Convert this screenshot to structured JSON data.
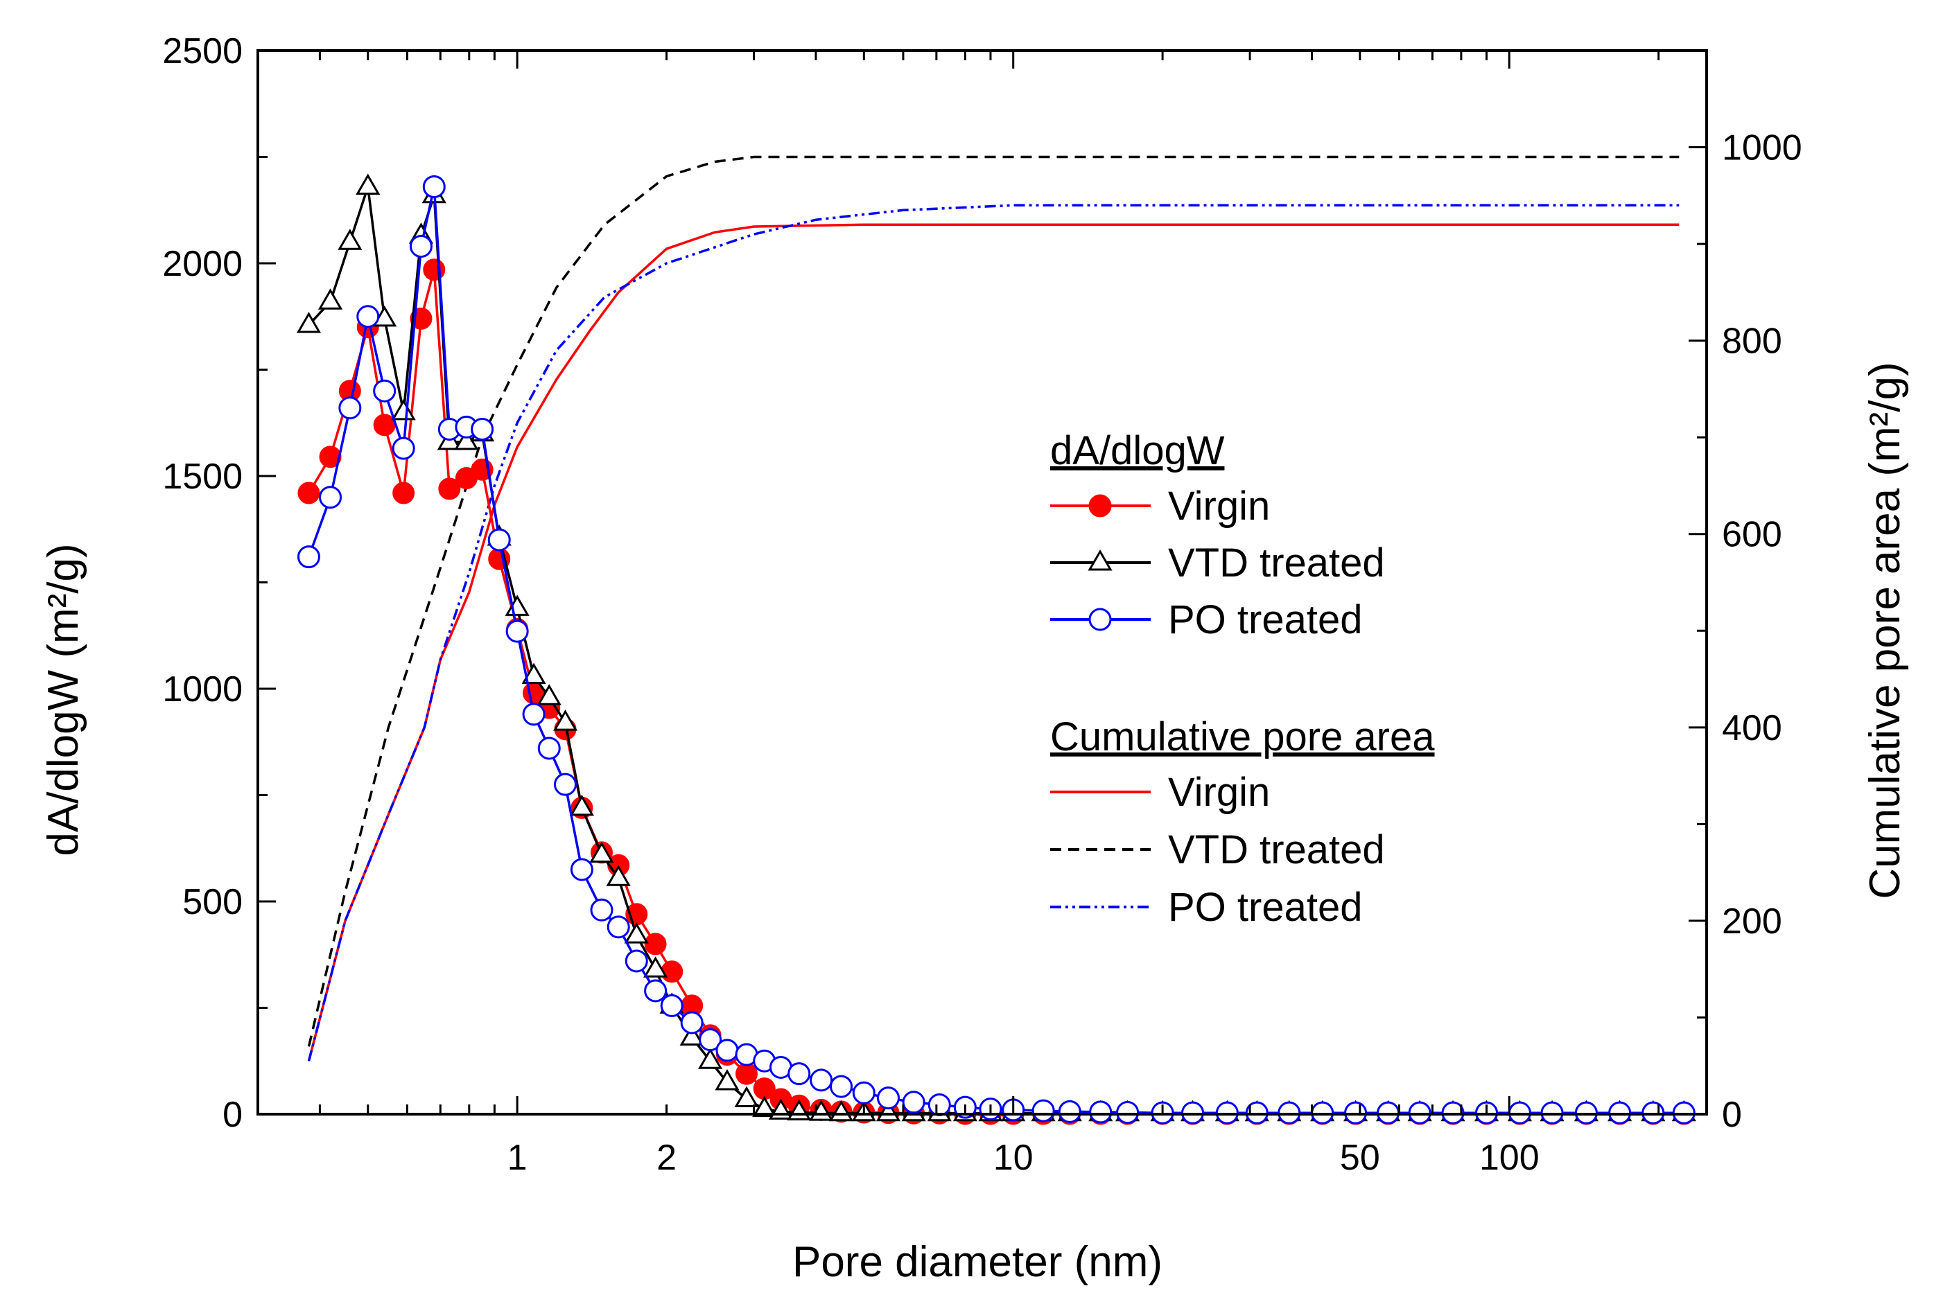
{
  "chart_data": {
    "type": "line",
    "x_scale": "log",
    "xlabel": "Pore diameter (nm)",
    "ylabel_left": "dA/dlogW (m²/g)",
    "ylabel_right": "Cumulative pore area (m²/g)",
    "xlim": [
      0.3,
      250
    ],
    "ylim_left": [
      0,
      2500
    ],
    "ylim_right": [
      0,
      1100
    ],
    "x_tick_labels": [
      {
        "value": 1,
        "label": "1"
      },
      {
        "value": 2,
        "label": "2"
      },
      {
        "value": 10,
        "label": "10"
      },
      {
        "value": 50,
        "label": "50"
      },
      {
        "value": 100,
        "label": "100"
      }
    ],
    "y_left_ticks": [
      0,
      500,
      1000,
      1500,
      2000,
      2500
    ],
    "y_right_ticks": [
      0,
      200,
      400,
      600,
      800,
      1000
    ],
    "legend": {
      "group1_title": "dA/dlogW",
      "group2_title": "Cumulative pore area",
      "entries": [
        "Virgin",
        "VTD treated",
        "PO treated"
      ]
    },
    "colors": {
      "virgin": "#ff0000",
      "vtd": "#000000",
      "po": "#0000ff"
    },
    "distribution_series": [
      {
        "name": "Virgin",
        "marker": "filled-circle",
        "points": [
          [
            0.38,
            1460
          ],
          [
            0.42,
            1545
          ],
          [
            0.46,
            1700
          ],
          [
            0.5,
            1850
          ],
          [
            0.54,
            1620
          ],
          [
            0.59,
            1460
          ],
          [
            0.64,
            1870
          ],
          [
            0.68,
            1985
          ],
          [
            0.73,
            1470
          ],
          [
            0.79,
            1495
          ],
          [
            0.85,
            1515
          ],
          [
            0.92,
            1305
          ],
          [
            1.0,
            1140
          ],
          [
            1.08,
            990
          ],
          [
            1.16,
            955
          ],
          [
            1.25,
            905
          ],
          [
            1.35,
            720
          ],
          [
            1.48,
            615
          ],
          [
            1.6,
            585
          ],
          [
            1.74,
            470
          ],
          [
            1.9,
            400
          ],
          [
            2.05,
            335
          ],
          [
            2.25,
            255
          ],
          [
            2.45,
            185
          ],
          [
            2.65,
            140
          ],
          [
            2.9,
            95
          ],
          [
            3.15,
            60
          ],
          [
            3.4,
            35
          ],
          [
            3.7,
            20
          ],
          [
            4.1,
            10
          ],
          [
            4.5,
            6
          ],
          [
            5.0,
            4
          ],
          [
            5.6,
            3
          ],
          [
            6.3,
            2
          ],
          [
            7.1,
            2
          ],
          [
            8.0,
            1
          ],
          [
            9.0,
            1
          ],
          [
            10.0,
            1
          ],
          [
            11.5,
            1
          ],
          [
            13.0,
            1
          ],
          [
            15.0,
            1
          ],
          [
            17.0,
            1
          ],
          [
            20.0,
            1
          ],
          [
            23.0,
            1
          ],
          [
            27.0,
            1
          ],
          [
            31.0,
            1
          ],
          [
            36.0,
            1
          ],
          [
            42.0,
            1
          ],
          [
            49.0,
            1
          ],
          [
            57.0,
            1
          ],
          [
            66.0,
            1
          ],
          [
            77.0,
            1
          ],
          [
            90.0,
            1
          ],
          [
            105.0,
            1
          ],
          [
            122.0,
            1
          ],
          [
            143.0,
            1
          ],
          [
            167.0,
            1
          ],
          [
            195.0,
            1
          ],
          [
            225.0,
            1
          ]
        ]
      },
      {
        "name": "VTD treated",
        "marker": "open-triangle",
        "points": [
          [
            0.38,
            1855
          ],
          [
            0.42,
            1910
          ],
          [
            0.46,
            2050
          ],
          [
            0.5,
            2180
          ],
          [
            0.54,
            1870
          ],
          [
            0.59,
            1650
          ],
          [
            0.64,
            2065
          ],
          [
            0.68,
            2160
          ],
          [
            0.73,
            1580
          ],
          [
            0.79,
            1580
          ],
          [
            0.85,
            1600
          ],
          [
            0.92,
            1355
          ],
          [
            1.0,
            1190
          ],
          [
            1.08,
            1030
          ],
          [
            1.16,
            980
          ],
          [
            1.25,
            920
          ],
          [
            1.35,
            720
          ],
          [
            1.48,
            610
          ],
          [
            1.6,
            555
          ],
          [
            1.74,
            420
          ],
          [
            1.9,
            340
          ],
          [
            2.05,
            255
          ],
          [
            2.25,
            180
          ],
          [
            2.45,
            125
          ],
          [
            2.65,
            75
          ],
          [
            2.9,
            35
          ],
          [
            3.15,
            12
          ],
          [
            3.4,
            6
          ],
          [
            3.7,
            4
          ],
          [
            4.1,
            3
          ],
          [
            4.5,
            2
          ],
          [
            5.0,
            2
          ],
          [
            5.6,
            2
          ],
          [
            6.3,
            2
          ],
          [
            7.1,
            2
          ],
          [
            8.0,
            2
          ],
          [
            9.0,
            2
          ],
          [
            10.0,
            2
          ],
          [
            11.5,
            2
          ],
          [
            13.0,
            2
          ],
          [
            15.0,
            2
          ],
          [
            17.0,
            2
          ],
          [
            20.0,
            2
          ],
          [
            23.0,
            2
          ],
          [
            27.0,
            2
          ],
          [
            31.0,
            2
          ],
          [
            36.0,
            2
          ],
          [
            42.0,
            2
          ],
          [
            49.0,
            2
          ],
          [
            57.0,
            2
          ],
          [
            66.0,
            2
          ],
          [
            77.0,
            2
          ],
          [
            90.0,
            2
          ],
          [
            105.0,
            2
          ],
          [
            122.0,
            2
          ],
          [
            143.0,
            2
          ],
          [
            167.0,
            2
          ],
          [
            195.0,
            2
          ],
          [
            225.0,
            2
          ]
        ]
      },
      {
        "name": "PO treated",
        "marker": "open-circle",
        "points": [
          [
            0.38,
            1310
          ],
          [
            0.42,
            1450
          ],
          [
            0.46,
            1660
          ],
          [
            0.5,
            1875
          ],
          [
            0.54,
            1700
          ],
          [
            0.59,
            1565
          ],
          [
            0.64,
            2040
          ],
          [
            0.68,
            2180
          ],
          [
            0.73,
            1610
          ],
          [
            0.79,
            1615
          ],
          [
            0.85,
            1610
          ],
          [
            0.92,
            1350
          ],
          [
            1.0,
            1135
          ],
          [
            1.08,
            940
          ],
          [
            1.16,
            860
          ],
          [
            1.25,
            775
          ],
          [
            1.35,
            575
          ],
          [
            1.48,
            480
          ],
          [
            1.6,
            440
          ],
          [
            1.74,
            360
          ],
          [
            1.9,
            290
          ],
          [
            2.05,
            255
          ],
          [
            2.25,
            215
          ],
          [
            2.45,
            175
          ],
          [
            2.65,
            150
          ],
          [
            2.9,
            140
          ],
          [
            3.15,
            125
          ],
          [
            3.4,
            110
          ],
          [
            3.7,
            95
          ],
          [
            4.1,
            80
          ],
          [
            4.5,
            65
          ],
          [
            5.0,
            50
          ],
          [
            5.6,
            38
          ],
          [
            6.3,
            28
          ],
          [
            7.1,
            22
          ],
          [
            8.0,
            16
          ],
          [
            9.0,
            12
          ],
          [
            10.0,
            10
          ],
          [
            11.5,
            8
          ],
          [
            13.0,
            6
          ],
          [
            15.0,
            5
          ],
          [
            17.0,
            4
          ],
          [
            20.0,
            3
          ],
          [
            23.0,
            3
          ],
          [
            27.0,
            3
          ],
          [
            31.0,
            3
          ],
          [
            36.0,
            3
          ],
          [
            42.0,
            3
          ],
          [
            49.0,
            3
          ],
          [
            57.0,
            3
          ],
          [
            66.0,
            3
          ],
          [
            77.0,
            3
          ],
          [
            90.0,
            3
          ],
          [
            105.0,
            3
          ],
          [
            122.0,
            3
          ],
          [
            143.0,
            3
          ],
          [
            167.0,
            3
          ],
          [
            195.0,
            3
          ],
          [
            225.0,
            3
          ]
        ]
      }
    ],
    "cumulative_series": [
      {
        "name": "Virgin",
        "line_style": "solid",
        "points": [
          [
            0.38,
            55
          ],
          [
            0.45,
            200
          ],
          [
            0.55,
            310
          ],
          [
            0.65,
            400
          ],
          [
            0.7,
            470
          ],
          [
            0.8,
            540
          ],
          [
            0.9,
            630
          ],
          [
            1.0,
            690
          ],
          [
            1.2,
            760
          ],
          [
            1.4,
            810
          ],
          [
            1.6,
            850
          ],
          [
            2.0,
            895
          ],
          [
            2.5,
            912
          ],
          [
            3.0,
            918
          ],
          [
            5.0,
            920
          ],
          [
            10.0,
            920
          ],
          [
            50.0,
            920
          ],
          [
            220.0,
            920
          ]
        ]
      },
      {
        "name": "VTD treated",
        "line_style": "dashed",
        "points": [
          [
            0.38,
            70
          ],
          [
            0.45,
            230
          ],
          [
            0.55,
            400
          ],
          [
            0.7,
            565
          ],
          [
            0.85,
            700
          ],
          [
            1.0,
            775
          ],
          [
            1.2,
            855
          ],
          [
            1.5,
            920
          ],
          [
            2.0,
            970
          ],
          [
            2.5,
            985
          ],
          [
            3.0,
            990
          ],
          [
            10.0,
            990
          ],
          [
            50.0,
            990
          ],
          [
            220.0,
            990
          ]
        ]
      },
      {
        "name": "PO treated",
        "line_style": "dash-dot-dot",
        "points": [
          [
            0.38,
            55
          ],
          [
            0.45,
            200
          ],
          [
            0.55,
            310
          ],
          [
            0.65,
            400
          ],
          [
            0.7,
            470
          ],
          [
            0.8,
            560
          ],
          [
            0.9,
            650
          ],
          [
            1.0,
            715
          ],
          [
            1.2,
            790
          ],
          [
            1.5,
            845
          ],
          [
            2.0,
            880
          ],
          [
            3.0,
            910
          ],
          [
            4.0,
            925
          ],
          [
            6.0,
            935
          ],
          [
            10.0,
            940
          ],
          [
            50.0,
            940
          ],
          [
            220.0,
            940
          ]
        ]
      }
    ]
  }
}
